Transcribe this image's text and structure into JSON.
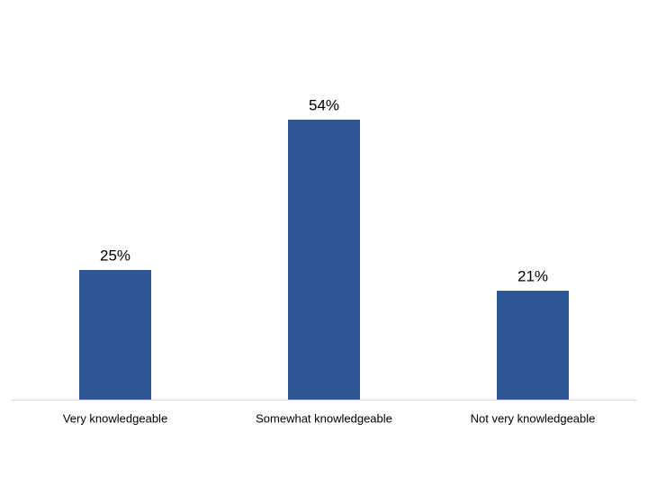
{
  "chart_data": {
    "type": "bar",
    "categories": [
      "Very knowledgeable",
      "Somewhat knowledgeable",
      "Not very knowledgeable"
    ],
    "values": [
      25,
      54,
      21
    ],
    "value_labels": [
      "25%",
      "54%",
      "21%"
    ],
    "color": "#2f5597"
  }
}
